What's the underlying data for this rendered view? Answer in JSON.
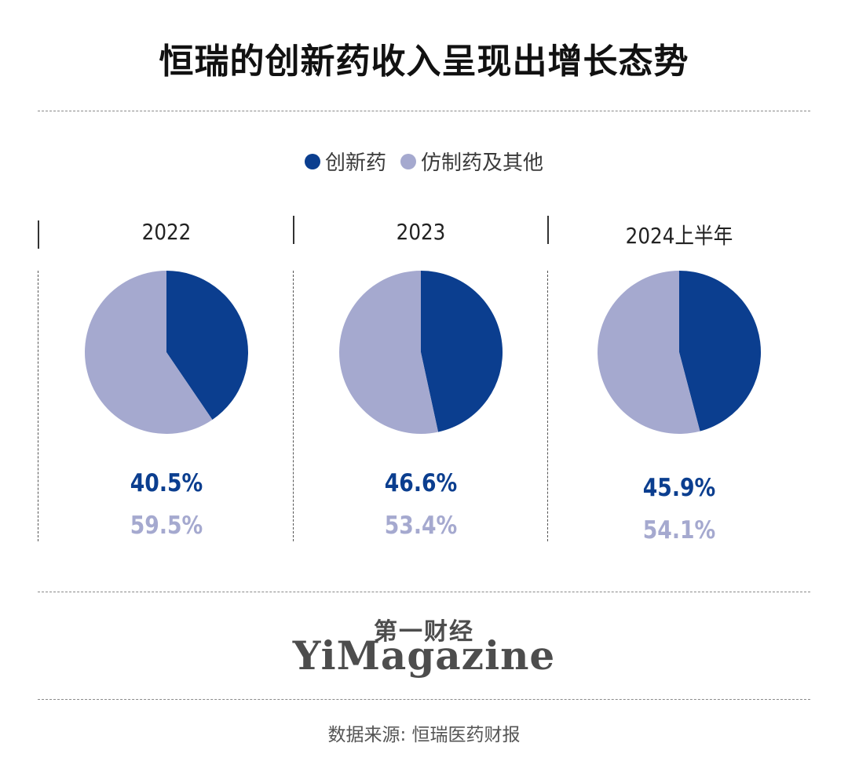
{
  "title": "恒瑞的创新药收入呈现出增长态势",
  "legend": [
    {
      "label": "创新药",
      "color": "#0b3e8f"
    },
    {
      "label": "仿制药及其他",
      "color": "#a5a9cf"
    }
  ],
  "chart_data": [
    {
      "type": "pie",
      "title": "2022",
      "series": [
        {
          "name": "创新药",
          "value": 40.5,
          "label": "40.5%"
        },
        {
          "name": "仿制药及其他",
          "value": 59.5,
          "label": "59.5%"
        }
      ]
    },
    {
      "type": "pie",
      "title": "2023",
      "series": [
        {
          "name": "创新药",
          "value": 46.6,
          "label": "46.6%"
        },
        {
          "name": "仿制药及其他",
          "value": 53.4,
          "label": "53.4%"
        }
      ]
    },
    {
      "type": "pie",
      "title": "2024上半年",
      "series": [
        {
          "name": "创新药",
          "value": 45.9,
          "label": "45.9%"
        },
        {
          "name": "仿制药及其他",
          "value": 54.1,
          "label": "54.1%"
        }
      ]
    }
  ],
  "brand": {
    "cn": "第一财经",
    "en": "YiMagazine"
  },
  "source": "数据来源: 恒瑞医药财报"
}
